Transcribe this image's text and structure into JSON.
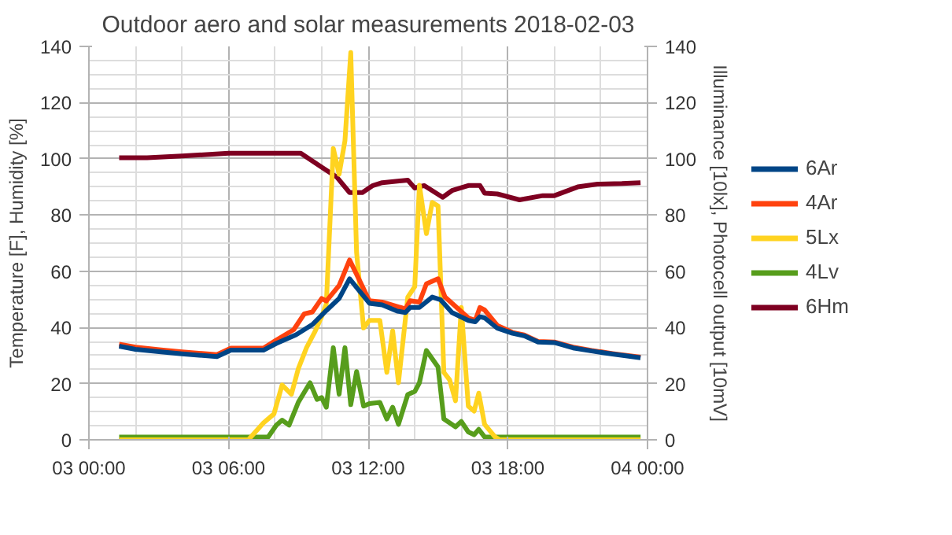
{
  "chart_data": {
    "type": "line",
    "title": "Outdoor aero and solar measurements 2018-02-03",
    "ylabel": "Temperature [F], Humidity [%]",
    "y2label": "Illuminance [10lx], Photocell output [10mV]",
    "xlim": [
      "2018-02-03T00:00",
      "2018-02-04T00:00"
    ],
    "xticks": [
      {
        "value": "2018-02-03T00:00",
        "label": "03 00:00"
      },
      {
        "value": "2018-02-03T06:00",
        "label": "03 06:00"
      },
      {
        "value": "2018-02-03T12:00",
        "label": "03 12:00"
      },
      {
        "value": "2018-02-03T18:00",
        "label": "03 18:00"
      },
      {
        "value": "2018-02-04T00:00",
        "label": "04 00:00"
      }
    ],
    "ylim": [
      0,
      140
    ],
    "yticks": [
      0,
      20,
      40,
      60,
      80,
      100,
      120,
      140
    ],
    "y2lim": [
      0,
      140
    ],
    "y2ticks": [
      0,
      20,
      40,
      60,
      80,
      100,
      120,
      140
    ],
    "grid": true,
    "legend": "right",
    "line_style": "solid",
    "marker": "none",
    "series": [
      {
        "name": "6Ar",
        "color": "#004586",
        "x": [
          "2018-02-03T01:18",
          "2018-02-03T02:00",
          "2018-02-03T03:06",
          "2018-02-03T04:00",
          "2018-02-03T05:30",
          "2018-02-03T06:06",
          "2018-02-03T07:30",
          "2018-02-03T08:03",
          "2018-02-03T08:54",
          "2018-02-03T09:36",
          "2018-02-03T10:12",
          "2018-02-03T10:45",
          "2018-02-03T11:12",
          "2018-02-03T12:03",
          "2018-02-03T12:36",
          "2018-02-03T13:15",
          "2018-02-03T13:36",
          "2018-02-03T13:48",
          "2018-02-03T14:12",
          "2018-02-03T14:45",
          "2018-02-03T15:06",
          "2018-02-03T15:36",
          "2018-02-03T16:18",
          "2018-02-03T16:36",
          "2018-02-03T16:48",
          "2018-02-03T17:00",
          "2018-02-03T17:33",
          "2018-02-03T18:12",
          "2018-02-03T18:42",
          "2018-02-03T19:18",
          "2018-02-03T20:00",
          "2018-02-03T20:48",
          "2018-02-03T21:36",
          "2018-02-03T22:30",
          "2018-02-03T23:42"
        ],
        "values": [
          33.3,
          32.2,
          31.3,
          30.6,
          29.6,
          31.9,
          31.9,
          34.3,
          37.4,
          41,
          46,
          50.3,
          57.3,
          48.6,
          48,
          45.8,
          45.3,
          47.1,
          47.1,
          50.8,
          49.9,
          45.3,
          42.5,
          42,
          43.8,
          43.4,
          39.7,
          37.9,
          37,
          34.8,
          34.6,
          32.7,
          31.6,
          30.5,
          29.2
        ]
      },
      {
        "name": "4Ar",
        "color": "#ff420e",
        "x": [
          "2018-02-03T01:18",
          "2018-02-03T02:00",
          "2018-02-03T03:06",
          "2018-02-03T04:00",
          "2018-02-03T05:30",
          "2018-02-03T06:06",
          "2018-02-03T07:30",
          "2018-02-03T08:03",
          "2018-02-03T08:48",
          "2018-02-03T09:15",
          "2018-02-03T09:36",
          "2018-02-03T10:00",
          "2018-02-03T10:12",
          "2018-02-03T10:45",
          "2018-02-03T11:12",
          "2018-02-03T12:03",
          "2018-02-03T12:36",
          "2018-02-03T13:36",
          "2018-02-03T13:48",
          "2018-02-03T14:12",
          "2018-02-03T14:30",
          "2018-02-03T15:00",
          "2018-02-03T15:18",
          "2018-02-03T16:18",
          "2018-02-03T16:36",
          "2018-02-03T16:48",
          "2018-02-03T17:00",
          "2018-02-03T17:33",
          "2018-02-03T18:12",
          "2018-02-03T18:42",
          "2018-02-03T19:18",
          "2018-02-03T20:00",
          "2018-02-03T20:48",
          "2018-02-03T21:36",
          "2018-02-03T22:30",
          "2018-02-03T23:42"
        ],
        "values": [
          34,
          33,
          32,
          31.3,
          30.3,
          32.6,
          32.6,
          35.5,
          39.2,
          44.8,
          45.5,
          50.3,
          49.4,
          54.9,
          64,
          49.5,
          49,
          46.6,
          49.5,
          49,
          55.5,
          57.3,
          50.8,
          43.4,
          42.5,
          47.1,
          46.2,
          40.7,
          38.2,
          37.3,
          35,
          34.8,
          33,
          31.8,
          30.7,
          29.4
        ]
      },
      {
        "name": "5Lx",
        "color": "#ffd320",
        "x": [
          "2018-02-03T01:18",
          "2018-02-03T06:51",
          "2018-02-03T07:30",
          "2018-02-03T07:57",
          "2018-02-03T08:18",
          "2018-02-03T08:42",
          "2018-02-03T09:00",
          "2018-02-03T09:21",
          "2018-02-03T09:42",
          "2018-02-03T10:00",
          "2018-02-03T10:12",
          "2018-02-03T10:30",
          "2018-02-03T10:45",
          "2018-02-03T11:00",
          "2018-02-03T11:15",
          "2018-02-03T11:30",
          "2018-02-03T11:48",
          "2018-02-03T12:03",
          "2018-02-03T12:30",
          "2018-02-03T12:48",
          "2018-02-03T13:03",
          "2018-02-03T13:18",
          "2018-02-03T13:42",
          "2018-02-03T14:00",
          "2018-02-03T14:12",
          "2018-02-03T14:30",
          "2018-02-03T14:45",
          "2018-02-03T15:00",
          "2018-02-03T15:15",
          "2018-02-03T15:30",
          "2018-02-03T15:45",
          "2018-02-03T16:00",
          "2018-02-03T16:18",
          "2018-02-03T16:33",
          "2018-02-03T16:45",
          "2018-02-03T17:00",
          "2018-02-03T17:27",
          "2018-02-03T17:39",
          "2018-02-03T23:42"
        ],
        "values": [
          0,
          0,
          6,
          9.2,
          19.5,
          16.2,
          25.4,
          32.8,
          38.3,
          43.8,
          48.4,
          103.7,
          94.5,
          106.4,
          137.8,
          66.7,
          39.8,
          42.5,
          42.5,
          24,
          38.8,
          20.3,
          50.8,
          54.5,
          90.6,
          73.4,
          84.5,
          83.2,
          24,
          21.3,
          13.9,
          47.1,
          12,
          10.2,
          16.6,
          5.5,
          1,
          0,
          0
        ]
      },
      {
        "name": "4Lv",
        "color": "#579d1c",
        "x": [
          "2018-02-03T01:18",
          "2018-02-03T07:42",
          "2018-02-03T08:03",
          "2018-02-03T08:18",
          "2018-02-03T08:36",
          "2018-02-03T09:00",
          "2018-02-03T09:30",
          "2018-02-03T09:48",
          "2018-02-03T10:00",
          "2018-02-03T10:12",
          "2018-02-03T10:30",
          "2018-02-03T10:45",
          "2018-02-03T11:00",
          "2018-02-03T11:15",
          "2018-02-03T11:30",
          "2018-02-03T11:48",
          "2018-02-03T12:03",
          "2018-02-03T12:30",
          "2018-02-03T12:48",
          "2018-02-03T13:03",
          "2018-02-03T13:18",
          "2018-02-03T13:42",
          "2018-02-03T14:00",
          "2018-02-03T14:12",
          "2018-02-03T14:30",
          "2018-02-03T15:00",
          "2018-02-03T15:15",
          "2018-02-03T15:45",
          "2018-02-03T16:00",
          "2018-02-03T16:18",
          "2018-02-03T16:33",
          "2018-02-03T16:45",
          "2018-02-03T17:00",
          "2018-02-03T23:42"
        ],
        "values": [
          1,
          1,
          5.2,
          7,
          5.2,
          13.4,
          20.3,
          14.4,
          15,
          11.6,
          32.8,
          16.2,
          32.8,
          12.5,
          24.3,
          12,
          12.9,
          13.3,
          7.4,
          11.6,
          5.5,
          16.1,
          17.2,
          20.3,
          31.8,
          25.9,
          7.4,
          4.6,
          6.5,
          2.8,
          1.8,
          3.7,
          1,
          1
        ]
      },
      {
        "name": "6Hm",
        "color": "#7e0021",
        "x": [
          "2018-02-03T01:18",
          "2018-02-03T02:30",
          "2018-02-03T04:00",
          "2018-02-03T06:00",
          "2018-02-03T09:06",
          "2018-02-03T10:00",
          "2018-02-03T10:39",
          "2018-02-03T11:12",
          "2018-02-03T11:45",
          "2018-02-03T12:12",
          "2018-02-03T12:36",
          "2018-02-03T13:42",
          "2018-02-03T14:00",
          "2018-02-03T14:24",
          "2018-02-03T15:12",
          "2018-02-03T15:36",
          "2018-02-03T16:18",
          "2018-02-03T16:48",
          "2018-02-03T17:00",
          "2018-02-03T17:33",
          "2018-02-03T18:30",
          "2018-02-03T19:30",
          "2018-02-03T20:00",
          "2018-02-03T21:00",
          "2018-02-03T21:51",
          "2018-02-03T22:54",
          "2018-02-03T23:42"
        ],
        "values": [
          100.4,
          100.4,
          101,
          102,
          102,
          97,
          93.5,
          88,
          88,
          90.5,
          91.5,
          92.4,
          89.6,
          90.5,
          86.3,
          88.7,
          90.5,
          90.5,
          87.8,
          87.5,
          85.4,
          86.9,
          86.9,
          90,
          91,
          91.2,
          91.5
        ]
      }
    ]
  }
}
